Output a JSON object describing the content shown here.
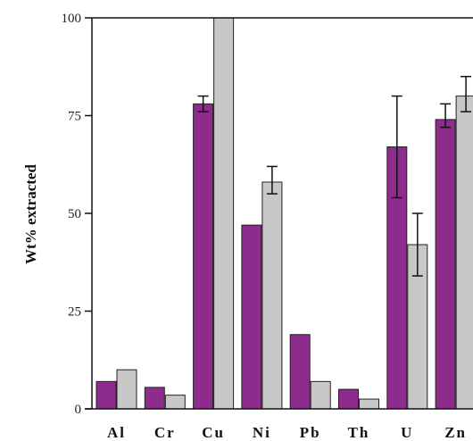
{
  "chart_data": {
    "type": "bar",
    "title": "",
    "xlabel": "",
    "ylabel": "Wt% extracted",
    "ylim": [
      0,
      100
    ],
    "yticks": [
      0,
      25,
      50,
      75,
      100
    ],
    "grid": false,
    "categories": [
      "Al",
      "Cr",
      "Cu",
      "Ni",
      "Pb",
      "Th",
      "U",
      "Zn"
    ],
    "series": [
      {
        "color": "#8e2c8e",
        "values": [
          7,
          5.5,
          78,
          47,
          19,
          5,
          67,
          74
        ],
        "error_low": [
          null,
          null,
          76,
          null,
          null,
          null,
          54,
          72
        ],
        "error_high": [
          null,
          null,
          80,
          null,
          null,
          null,
          80,
          78
        ]
      },
      {
        "color": "#c8c8c8",
        "values": [
          10,
          3.5,
          100,
          58,
          7,
          2.5,
          42,
          80
        ],
        "error_low": [
          null,
          null,
          null,
          55,
          null,
          null,
          34,
          76
        ],
        "error_high": [
          null,
          null,
          null,
          62,
          null,
          null,
          50,
          85
        ]
      }
    ]
  }
}
